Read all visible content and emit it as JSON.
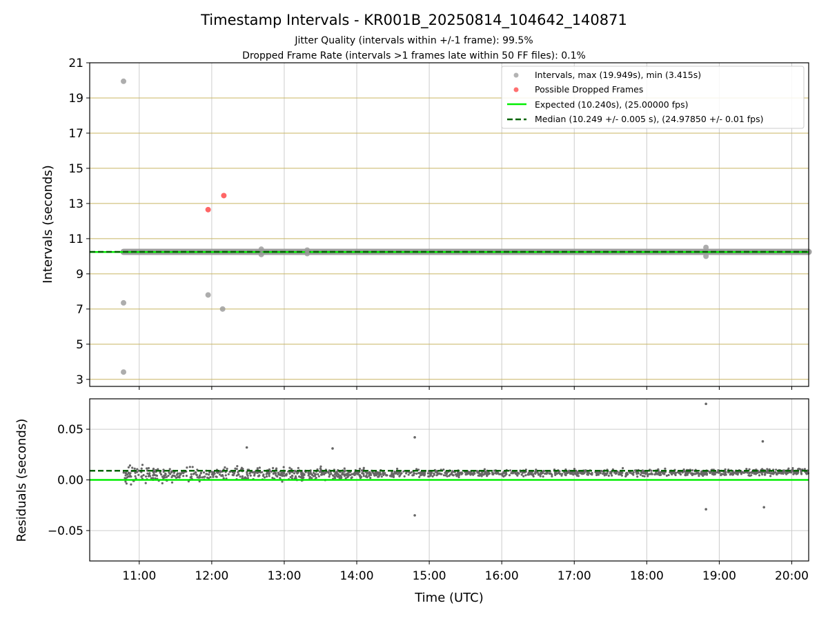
{
  "colors": {
    "background": "#ffffff",
    "interval_points": "#999999",
    "dropped_points": "#ff3333",
    "residual_points": "#666666",
    "expected_line": "#00ee00",
    "median_line": "#006400",
    "horizontal_grid_top": "#c8b462",
    "grid": "#cccccc"
  },
  "chart_data": [
    {
      "type": "scatter",
      "title": "Timestamp Intervals - KR001B_20250814_104642_140871",
      "subtitle_1": "Jitter Quality (intervals within +/-1 frame): 99.5%",
      "subtitle_2": "Dropped Frame Rate (intervals >1 frames late within 50 FF files): 0.1%",
      "ylabel": "Intervals (seconds)",
      "xlim": [
        "10:19",
        "20:14"
      ],
      "ylim": [
        2.6,
        21
      ],
      "yticks": [
        "3",
        "5",
        "7",
        "9",
        "11",
        "13",
        "15",
        "17",
        "19",
        "21"
      ],
      "grid": true,
      "legend_position": "top-right",
      "legend": [
        "Intervals, max (19.949s), min (3.415s)",
        "Possible Dropped Frames",
        "Expected (10.240s), (25.00000 fps)",
        "Median (10.249 +/- 0.005 s), (24.97850 +/- 0.01 fps)"
      ],
      "series": [
        {
          "name": "Intervals, max (19.949s), min (3.415s)",
          "points": [
            {
              "x": "10:47",
              "y": 19.949
            },
            {
              "x": "10:47",
              "y": 7.35
            },
            {
              "x": "10:47",
              "y": 3.415
            },
            {
              "x": "11:57",
              "y": 7.8
            },
            {
              "x": "12:09",
              "y": 7.0
            },
            {
              "x": "12:41",
              "y": 10.4
            },
            {
              "x": "12:41",
              "y": 10.1
            },
            {
              "x": "13:19",
              "y": 10.35
            },
            {
              "x": "13:19",
              "y": 10.15
            },
            {
              "x": "18:49",
              "y": 10.5
            },
            {
              "x": "18:49",
              "y": 10.0
            }
          ],
          "band": {
            "x_start": "10:47",
            "x_end": "20:14",
            "y": 10.25
          }
        },
        {
          "name": "Possible Dropped Frames",
          "points": [
            {
              "x": "11:57",
              "y": 12.65
            },
            {
              "x": "12:10",
              "y": 13.45
            }
          ]
        },
        {
          "name": "Expected (10.240s), (25.00000 fps)",
          "line": {
            "x": [
              "10:19",
              "20:14"
            ],
            "y": [
              10.24,
              10.24
            ]
          }
        },
        {
          "name": "Median (10.249 +/- 0.005 s), (24.97850 +/- 0.01 fps)",
          "line": {
            "x": [
              "10:19",
              "20:14"
            ],
            "y": [
              10.249,
              10.249
            ]
          }
        }
      ]
    },
    {
      "type": "scatter",
      "xlabel": "Time (UTC)",
      "ylabel": "Residuals (seconds)",
      "xlim": [
        "10:19",
        "20:14"
      ],
      "ylim": [
        -0.08,
        0.08
      ],
      "xticks": [
        "11:00",
        "12:00",
        "13:00",
        "14:00",
        "15:00",
        "16:00",
        "17:00",
        "18:00",
        "19:00",
        "20:00"
      ],
      "yticks": [
        "0.05",
        "0.00",
        "−0.05"
      ],
      "grid": true,
      "series": [
        {
          "name": "Residuals",
          "description_points": {
            "x_start": "10:47",
            "x_end": "20:14",
            "count": 1400,
            "center_early": 0.005,
            "center_late": 0.008,
            "spread_early": 0.018,
            "spread_late": 0.007
          },
          "outliers": [
            {
              "x": "14:48",
              "y": 0.042
            },
            {
              "x": "14:48",
              "y": -0.035
            },
            {
              "x": "18:49",
              "y": 0.075
            },
            {
              "x": "18:49",
              "y": -0.029
            },
            {
              "x": "19:36",
              "y": 0.038
            },
            {
              "x": "19:37",
              "y": -0.027
            },
            {
              "x": "12:29",
              "y": 0.032
            },
            {
              "x": "13:40",
              "y": 0.031
            }
          ]
        },
        {
          "name": "Expected",
          "line": {
            "x": [
              "10:19",
              "20:14"
            ],
            "y": [
              0.0,
              0.0
            ]
          }
        },
        {
          "name": "Median",
          "line": {
            "x": [
              "10:19",
              "20:14"
            ],
            "y": [
              0.009,
              0.009
            ]
          }
        }
      ]
    }
  ]
}
